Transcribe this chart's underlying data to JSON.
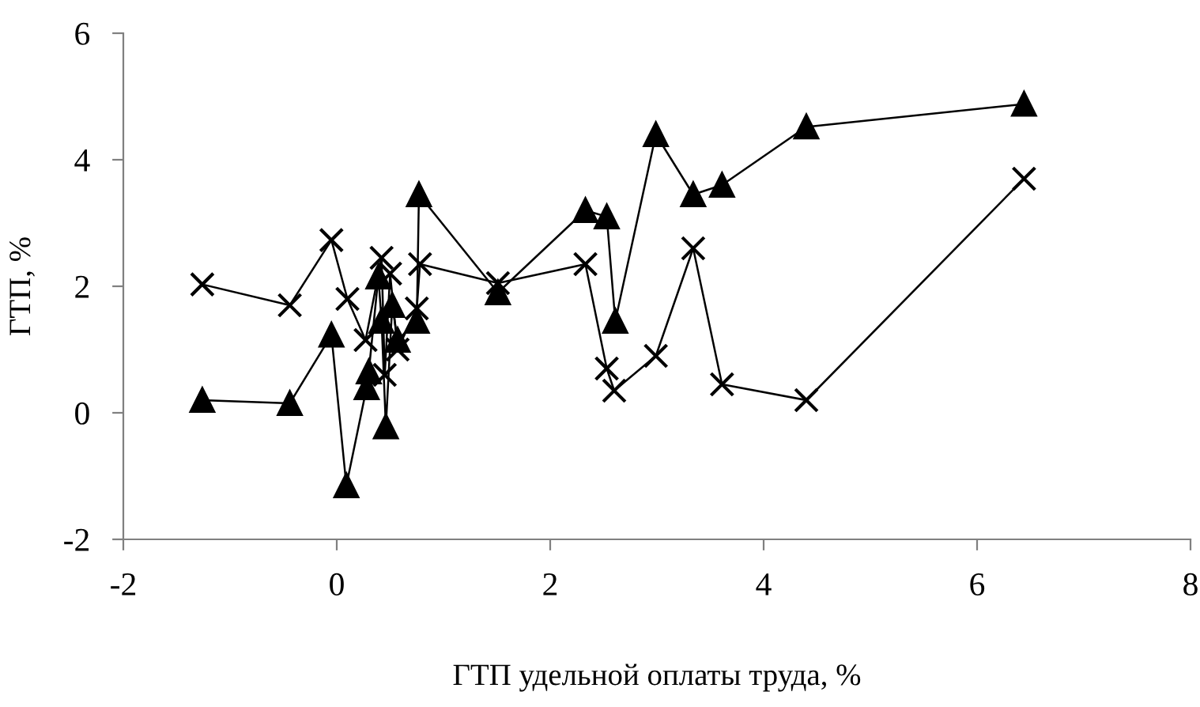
{
  "chart_data": {
    "type": "line",
    "xlabel": "ГТП удельной оплаты труда, %",
    "ylabel": "ГТП, %",
    "xlim": [
      -2,
      8
    ],
    "ylim": [
      -2,
      6
    ],
    "xticks": [
      -2,
      0,
      2,
      4,
      6,
      8
    ],
    "yticks": [
      -2,
      0,
      2,
      4,
      6
    ],
    "grid": false,
    "legend": false,
    "line_style": "solid",
    "series": [
      {
        "color": "#000000",
        "marker": "triangle",
        "x": [
          -1.26,
          -0.44,
          -0.05,
          0.09,
          0.28,
          0.3,
          0.39,
          0.42,
          0.46,
          0.52,
          0.57,
          0.75,
          0.77,
          1.51,
          2.33,
          2.53,
          2.61,
          2.99,
          3.34,
          3.61,
          4.4,
          6.44
        ],
        "values": [
          0.2,
          0.15,
          1.23,
          -1.15,
          0.4,
          0.65,
          2.15,
          1.45,
          -0.22,
          1.7,
          1.15,
          1.45,
          3.45,
          1.9,
          3.2,
          3.1,
          1.45,
          4.4,
          3.45,
          3.6,
          4.52,
          4.88
        ]
      },
      {
        "color": "#000000",
        "marker": "cross",
        "x": [
          -1.26,
          -0.44,
          -0.05,
          0.1,
          0.27,
          0.42,
          0.45,
          0.5,
          0.57,
          0.75,
          0.78,
          1.51,
          2.33,
          2.53,
          2.6,
          2.99,
          3.34,
          3.61,
          4.4,
          6.44
        ],
        "values": [
          2.03,
          1.7,
          2.73,
          1.8,
          1.15,
          2.45,
          0.6,
          2.2,
          1.0,
          1.65,
          2.35,
          2.05,
          2.35,
          0.7,
          0.35,
          0.9,
          2.6,
          0.45,
          0.2,
          3.7
        ]
      }
    ]
  }
}
